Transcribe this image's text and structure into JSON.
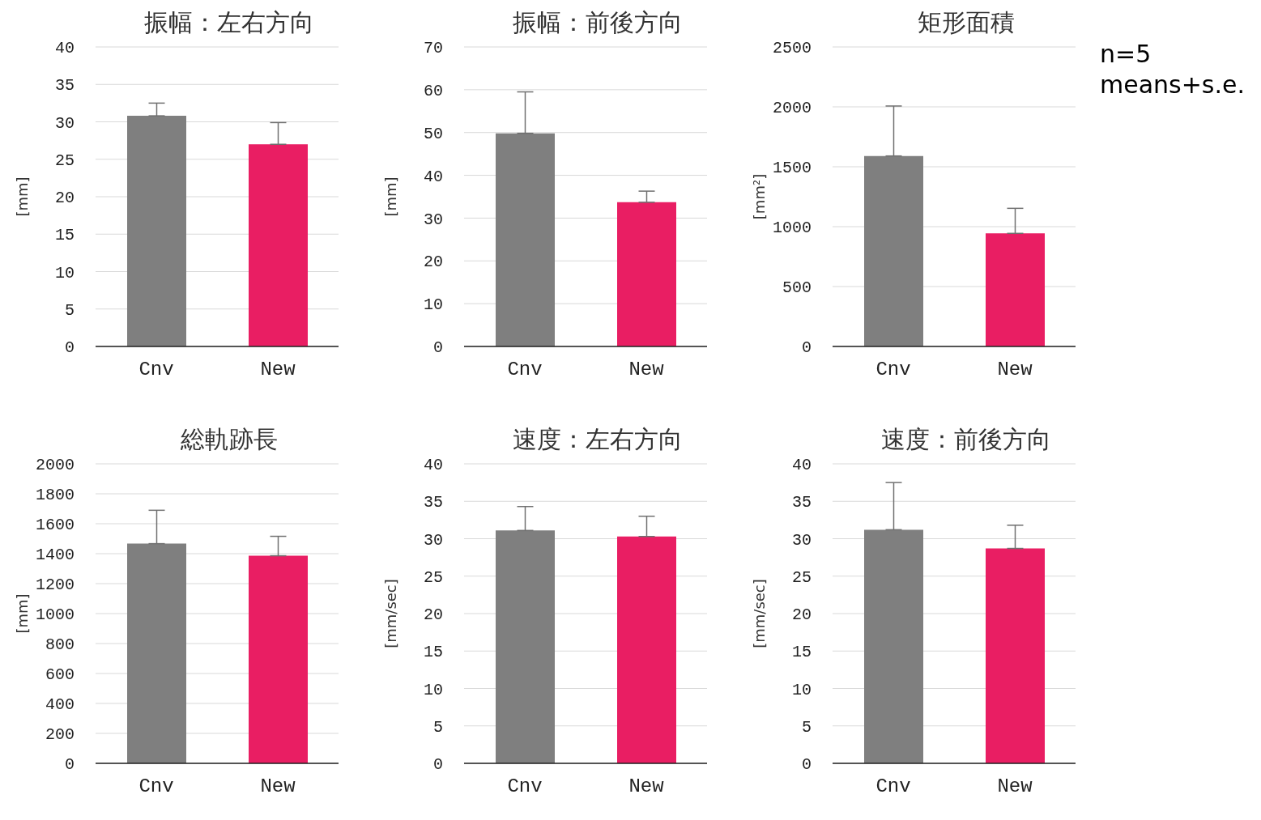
{
  "chart_data": [
    {
      "type": "bar",
      "title": "振幅：左右方向",
      "ylabel": "[mm]",
      "categories": [
        "Cnv",
        "New"
      ],
      "values": [
        30.8,
        27.0
      ],
      "errors": [
        [
          30.8,
          32.5
        ],
        [
          27.0,
          29.9
        ]
      ],
      "colors": [
        "#7f7f7f",
        "#e91e63"
      ],
      "ylim": [
        0,
        40
      ],
      "yticks": [
        0,
        5,
        10,
        15,
        20,
        25,
        30,
        35,
        40
      ],
      "grid": "y",
      "legend": false
    },
    {
      "type": "bar",
      "title": "振幅：前後方向",
      "ylabel": "[mm]",
      "categories": [
        "Cnv",
        "New"
      ],
      "values": [
        49.8,
        33.7
      ],
      "errors": [
        [
          49.8,
          59.5
        ],
        [
          33.7,
          36.3
        ]
      ],
      "colors": [
        "#7f7f7f",
        "#e91e63"
      ],
      "ylim": [
        0,
        70
      ],
      "yticks": [
        0,
        10,
        20,
        30,
        40,
        50,
        60,
        70
      ],
      "grid": "y",
      "legend": false
    },
    {
      "type": "bar",
      "title": "矩形面積",
      "ylabel": "[mm²]",
      "categories": [
        "Cnv",
        "New"
      ],
      "values": [
        1590,
        944
      ],
      "errors": [
        [
          1590,
          2007
        ],
        [
          944,
          1153
        ]
      ],
      "colors": [
        "#7f7f7f",
        "#e91e63"
      ],
      "ylim": [
        0,
        2500
      ],
      "yticks": [
        0,
        500,
        1000,
        1500,
        2000,
        2500
      ],
      "grid": "y",
      "legend": false,
      "annotations": [
        "n=5",
        "means+s.e."
      ]
    },
    {
      "type": "bar",
      "title": "総軌跡長",
      "ylabel": "[mm]",
      "categories": [
        "Cnv",
        "New"
      ],
      "values": [
        1467,
        1386
      ],
      "errors": [
        [
          1467,
          1690
        ],
        [
          1386,
          1516
        ]
      ],
      "colors": [
        "#7f7f7f",
        "#e91e63"
      ],
      "ylim": [
        0,
        2000
      ],
      "yticks": [
        0,
        200,
        400,
        600,
        800,
        1000,
        1200,
        1400,
        1600,
        1800,
        2000
      ],
      "grid": "y",
      "legend": false
    },
    {
      "type": "bar",
      "title": "速度：左右方向",
      "ylabel": "[mm/sec]",
      "categories": [
        "Cnv",
        "New"
      ],
      "values": [
        31.1,
        30.3
      ],
      "errors": [
        [
          31.1,
          34.3
        ],
        [
          30.3,
          33.0
        ]
      ],
      "colors": [
        "#7f7f7f",
        "#e91e63"
      ],
      "ylim": [
        0,
        40
      ],
      "yticks": [
        0,
        5,
        10,
        15,
        20,
        25,
        30,
        35,
        40
      ],
      "grid": "y",
      "legend": false
    },
    {
      "type": "bar",
      "title": "速度：前後方向",
      "ylabel": "[mm/sec]",
      "categories": [
        "Cnv",
        "New"
      ],
      "values": [
        31.2,
        28.7
      ],
      "errors": [
        [
          31.2,
          37.5
        ],
        [
          28.7,
          31.8
        ]
      ],
      "colors": [
        "#7f7f7f",
        "#e91e63"
      ],
      "ylim": [
        0,
        40
      ],
      "yticks": [
        0,
        5,
        10,
        15,
        20,
        25,
        30,
        35,
        40
      ],
      "grid": "y",
      "legend": false
    }
  ]
}
